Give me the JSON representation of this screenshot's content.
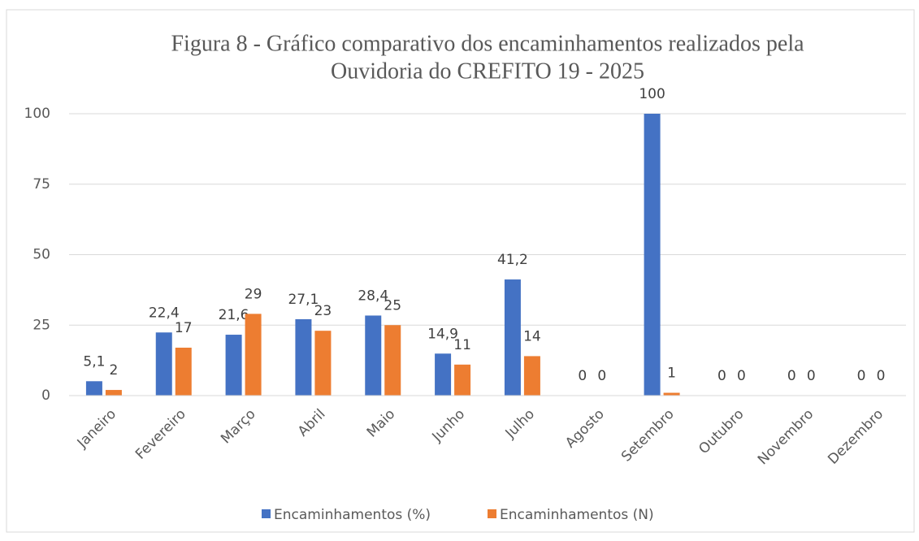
{
  "chart_data": {
    "type": "bar",
    "title": [
      "Figura 8 - Gráfico comparativo dos encaminhamentos realizados pela",
      "Ouvidoria do CREFITO 19  - 2025"
    ],
    "categories": [
      "Janeiro",
      "Fevereiro",
      "Março",
      "Abril",
      "Maio",
      "Junho",
      "Julho",
      "Agosto",
      "Setembro",
      "Outubro",
      "Novembro",
      "Dezembro"
    ],
    "series": [
      {
        "name": "Encaminhamentos (%)",
        "color": "#4472c4",
        "values": [
          5.1,
          22.4,
          21.6,
          27.1,
          28.4,
          14.9,
          41.2,
          0,
          100,
          0,
          0,
          0
        ],
        "value_labels": [
          "5,1",
          "22,4",
          "21,6",
          "27,1",
          "28,4",
          "14,9",
          "41,2",
          "0",
          "100",
          "0",
          "0",
          "0"
        ]
      },
      {
        "name": "Encaminhamentos (N)",
        "color": "#ed7d31",
        "values": [
          2,
          17,
          29,
          23,
          25,
          11,
          14,
          0,
          1,
          0,
          0,
          0
        ]
      }
    ],
    "ylim": [
      0,
      100
    ],
    "yticks": [
      0,
      25,
      50,
      75,
      100
    ],
    "grid": true,
    "legend": "bottom"
  }
}
